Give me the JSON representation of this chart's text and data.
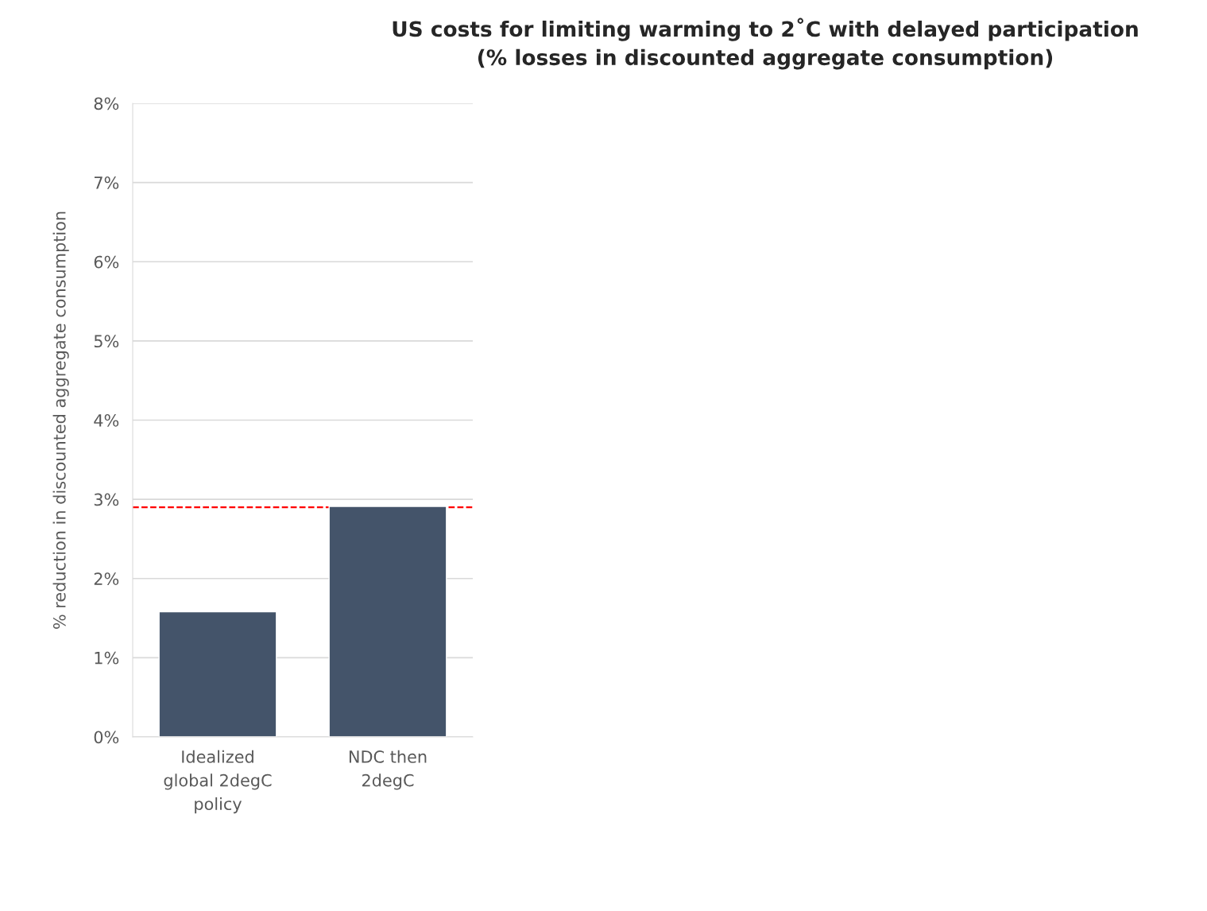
{
  "chart_data": {
    "type": "bar",
    "title": "US costs for limiting warming to 2˚C with delayed participation\n(% losses in discounted aggregate consumption)",
    "ylabel": "% reduction in discounted aggregate consumption",
    "categories": [
      "Idealized\nglobal 2degC\npolicy",
      "NDC then\n2degC"
    ],
    "values": [
      1.58,
      2.91
    ],
    "color": "#44546a",
    "ylim": [
      0,
      8
    ],
    "yticks": [
      {
        "value": 0,
        "label": "0%"
      },
      {
        "value": 1,
        "label": "1%"
      },
      {
        "value": 2,
        "label": "2%"
      },
      {
        "value": 3,
        "label": "3%"
      },
      {
        "value": 4,
        "label": "4%"
      },
      {
        "value": 5,
        "label": "5%"
      },
      {
        "value": 6,
        "label": "6%"
      },
      {
        "value": 7,
        "label": "7%"
      },
      {
        "value": 8,
        "label": "8%"
      }
    ],
    "grid": "y",
    "ref_lines": [
      {
        "axis": "y",
        "value": 2.9,
        "color": "#ff0000",
        "line_style": "dashed"
      }
    ]
  }
}
